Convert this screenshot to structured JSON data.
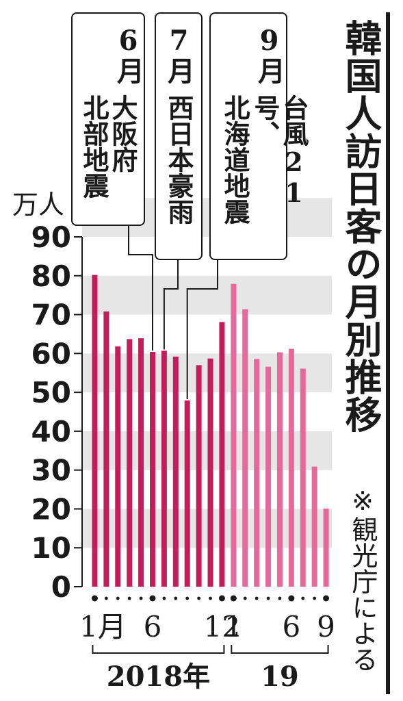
{
  "title": "韓国人訪日客の月別推移",
  "source_note": "※観光庁による",
  "annotations": [
    {
      "month": "6月",
      "events": [
        "大阪府",
        "北部地震"
      ]
    },
    {
      "month": "7月",
      "events": [
        "西日本豪雨"
      ]
    },
    {
      "month": "9月",
      "events": [
        "台風21号、",
        "北海道地震"
      ]
    }
  ],
  "colors": {
    "bar_2018": "#c41e5a",
    "bar_2019": "#e56a9a",
    "band": "#e6e6e6",
    "ink": "#1a1a1a"
  },
  "chart_data": {
    "type": "bar",
    "unit_label": "万人",
    "ylim": [
      0,
      90
    ],
    "yticks": [
      "0",
      "10",
      "20",
      "30",
      "40",
      "50",
      "60",
      "70",
      "80",
      "90"
    ],
    "x_tick_labels": {
      "0": "1月",
      "5": "6",
      "11": "12",
      "12": "1",
      "17": "6",
      "20": "9"
    },
    "year_labels": [
      {
        "label": "2018年",
        "from": 0,
        "to": 11
      },
      {
        "label": "19",
        "from": 12,
        "to": 20
      }
    ],
    "series": [
      {
        "values": [
          80.2,
          70.8,
          61.8,
          63.7,
          63.9,
          60.4,
          60.7,
          59.2,
          47.9,
          57.0,
          58.7,
          68.1,
          77.9,
          71.4,
          58.6,
          56.6,
          60.3,
          61.2,
          56.1,
          30.9,
          20.1
        ]
      }
    ],
    "grid": "alternating horizontal bands"
  }
}
